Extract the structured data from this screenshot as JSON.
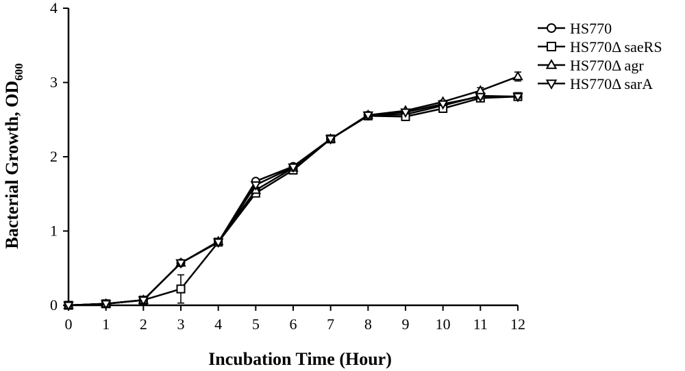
{
  "chart_data": {
    "type": "line",
    "xlabel": "Incubation Time (Hour)",
    "ylabel": "Bacterial Growth, OD",
    "ylabel_subscript": "600",
    "xlim": [
      0,
      12
    ],
    "ylim": [
      0,
      4
    ],
    "xticks": [
      0,
      1,
      2,
      3,
      4,
      5,
      6,
      7,
      8,
      9,
      10,
      11,
      12
    ],
    "yticks": [
      0,
      1,
      2,
      3,
      4
    ],
    "grid": false,
    "legend_position": "top-right",
    "x": [
      0,
      1,
      2,
      3,
      4,
      5,
      6,
      7,
      8,
      9,
      10,
      11,
      12
    ],
    "series": [
      {
        "name": "HS770",
        "marker": "circle",
        "values": [
          0.0,
          0.02,
          0.07,
          0.57,
          0.85,
          1.67,
          1.87,
          2.24,
          2.56,
          2.57,
          2.69,
          2.82,
          2.81
        ],
        "errors": [
          0,
          0,
          0,
          0.03,
          0,
          0.03,
          0.03,
          0,
          0.02,
          0.02,
          0.02,
          0.03,
          0.02
        ]
      },
      {
        "name": "HS770Δ saeRS",
        "marker": "square",
        "values": [
          0.0,
          0.02,
          0.07,
          0.22,
          0.85,
          1.51,
          1.82,
          2.24,
          2.55,
          2.54,
          2.65,
          2.79,
          2.81
        ],
        "errors": [
          0,
          0,
          0,
          0.19,
          0,
          0.03,
          0.03,
          0,
          0.02,
          0.02,
          0.02,
          0.03,
          0.02
        ]
      },
      {
        "name": "HS770Δ agr",
        "marker": "triangle-up",
        "values": [
          0.0,
          0.02,
          0.07,
          0.57,
          0.86,
          1.55,
          1.85,
          2.24,
          2.56,
          2.62,
          2.74,
          2.89,
          3.08
        ],
        "errors": [
          0,
          0,
          0,
          0.03,
          0,
          0.03,
          0.03,
          0,
          0.02,
          0.02,
          0.02,
          0.04,
          0.06
        ]
      },
      {
        "name": "HS770Δ sarA",
        "marker": "triangle-down",
        "values": [
          0.0,
          0.02,
          0.07,
          0.57,
          0.85,
          1.62,
          1.86,
          2.24,
          2.56,
          2.6,
          2.71,
          2.81,
          2.81
        ],
        "errors": [
          0,
          0,
          0,
          0.03,
          0,
          0.03,
          0.03,
          0,
          0.02,
          0.02,
          0.02,
          0.03,
          0.02
        ]
      }
    ]
  }
}
